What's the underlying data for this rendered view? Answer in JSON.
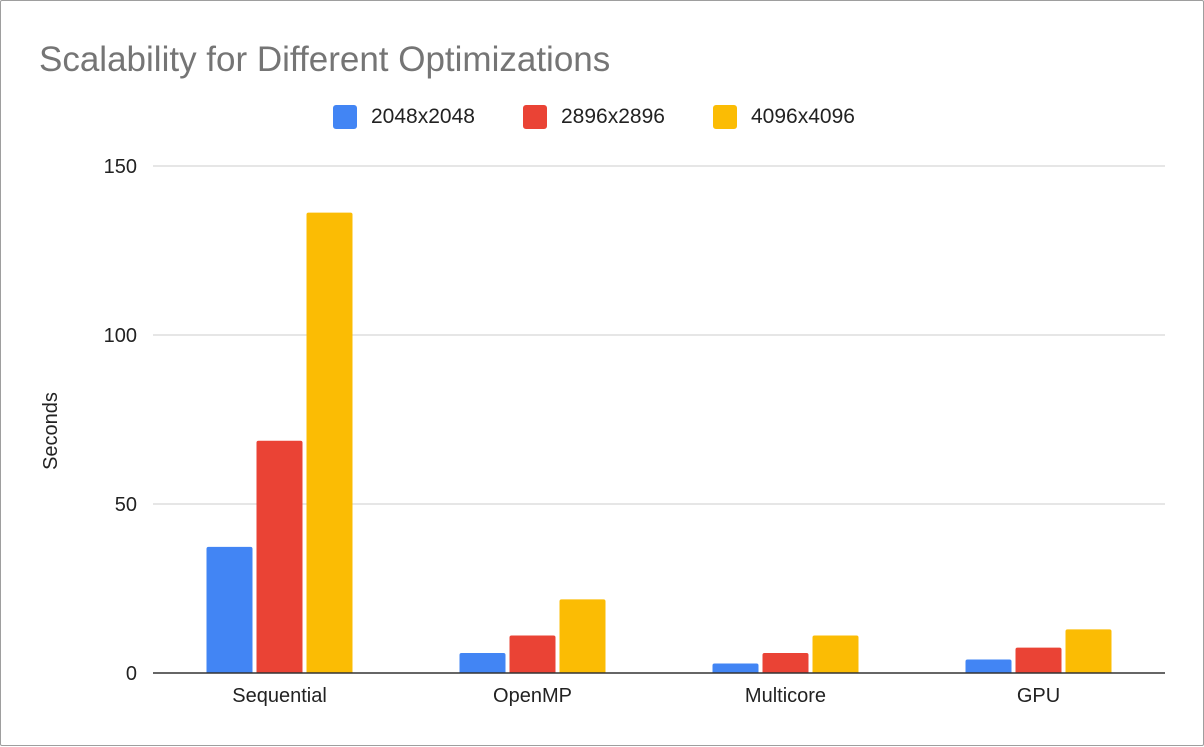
{
  "chart_data": {
    "type": "bar",
    "title": "Scalability for Different Optimizations",
    "xlabel": "",
    "ylabel": "Seconds",
    "categories": [
      "Sequential",
      "OpenMP",
      "Multicore",
      "GPU"
    ],
    "series": [
      {
        "name": "2048x2048",
        "color": "#4285f4",
        "values": [
          37.3,
          5.9,
          2.8,
          4.0
        ]
      },
      {
        "name": "2896x2896",
        "color": "#ea4335",
        "values": [
          68.7,
          11.1,
          5.9,
          7.5
        ]
      },
      {
        "name": "4096x4096",
        "color": "#fbbc04",
        "values": [
          136.2,
          21.8,
          11.1,
          12.9
        ]
      }
    ],
    "ylim": [
      0,
      150
    ],
    "yticks": [
      "0",
      "50",
      "100",
      "150"
    ],
    "ytick_values": [
      0,
      50,
      100,
      150
    ],
    "grid": true,
    "legend_position": "top"
  }
}
